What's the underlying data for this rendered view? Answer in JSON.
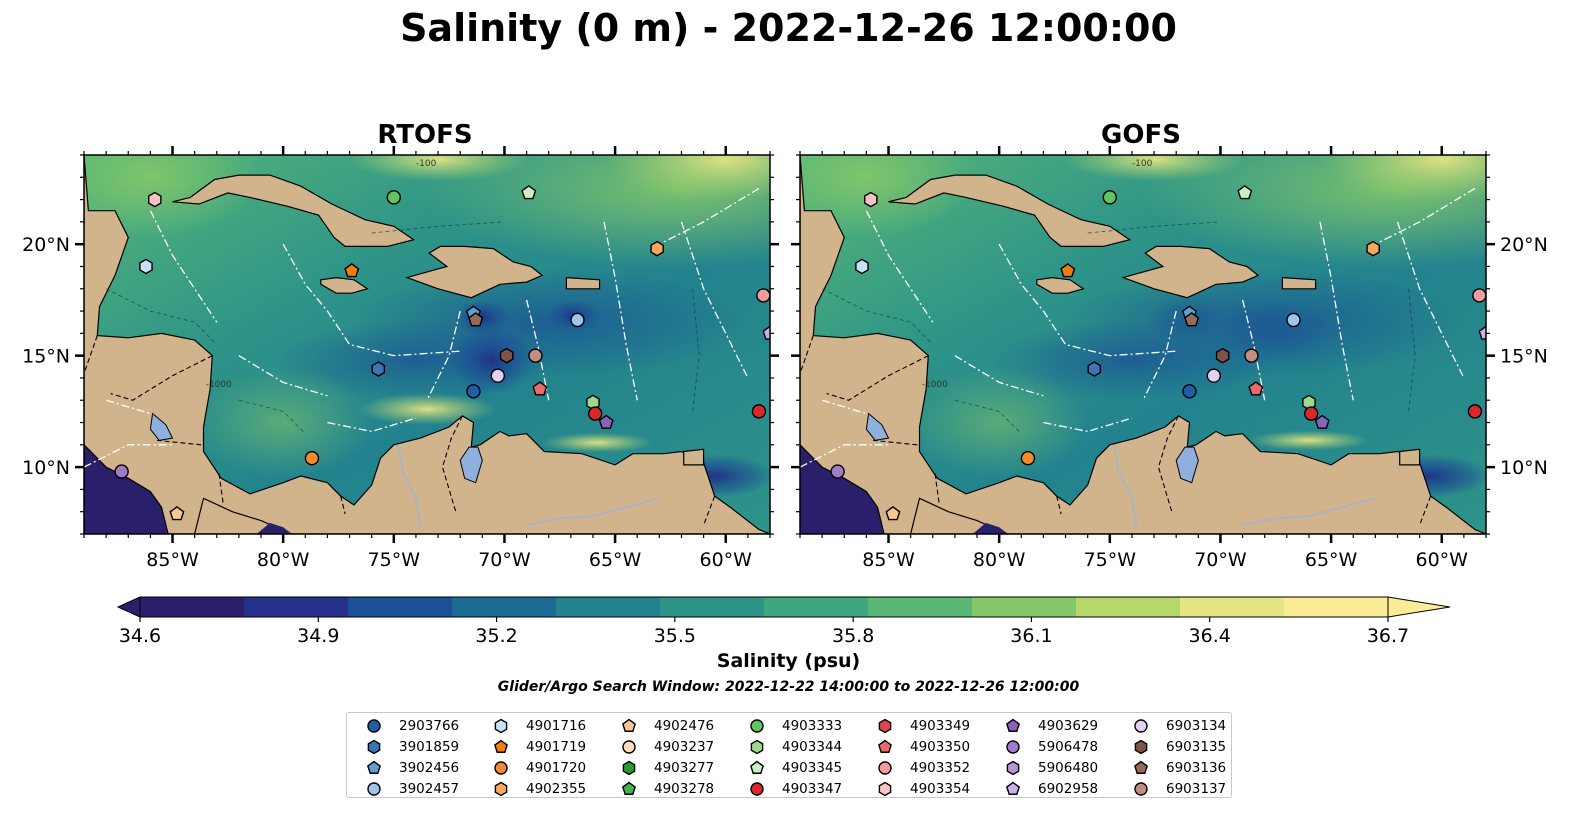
{
  "title": "Salinity (0 m) - 2022-12-26 12:00:00",
  "panels": [
    {
      "title": "RTOFS",
      "variant": "rtofs"
    },
    {
      "title": "GOFS",
      "variant": "gofs"
    }
  ],
  "axes": {
    "x_ticks": [
      "85°W",
      "80°W",
      "75°W",
      "70°W",
      "65°W",
      "60°W"
    ],
    "x_tick_values": [
      -85,
      -80,
      -75,
      -70,
      -65,
      -60
    ],
    "y_ticks": [
      "20°N",
      "15°N",
      "10°N"
    ],
    "y_tick_values": [
      20,
      15,
      10
    ],
    "extent": {
      "lon_min": -89,
      "lon_max": -58,
      "lat_min": 7,
      "lat_max": 24
    }
  },
  "colorbar": {
    "label": "Salinity (psu)",
    "ticks": [
      "34.6",
      "34.9",
      "35.2",
      "35.5",
      "35.8",
      "36.1",
      "36.4",
      "36.7"
    ],
    "min": 34.6,
    "max": 36.7,
    "colors": [
      "#2a1f6b",
      "#24328c",
      "#1c4f94",
      "#1c6b92",
      "#22828e",
      "#2e9488",
      "#3fa77f",
      "#5ab874",
      "#85c86a",
      "#b6d86b",
      "#e6e584",
      "#fdec97"
    ]
  },
  "contour_labels": [
    "-100",
    "-1000"
  ],
  "search_window": "Glider/Argo Search Window: 2022-12-22 14:00:00 to 2022-12-26 12:00:00",
  "legend": [
    {
      "id": "2903766",
      "marker": "circle",
      "color": "#1f5fa8"
    },
    {
      "id": "3901859",
      "marker": "hexagon",
      "color": "#3a75b5"
    },
    {
      "id": "3902456",
      "marker": "pentagon",
      "color": "#5f9fd6"
    },
    {
      "id": "3902457",
      "marker": "circle",
      "color": "#9cc6ea"
    },
    {
      "id": "4901716",
      "marker": "hexagon",
      "color": "#c6e2f6"
    },
    {
      "id": "4901719",
      "marker": "pentagon",
      "color": "#f07c12"
    },
    {
      "id": "4901720",
      "marker": "circle",
      "color": "#f58b2e"
    },
    {
      "id": "4902355",
      "marker": "hexagon",
      "color": "#f7a85a"
    },
    {
      "id": "4902476",
      "marker": "pentagon",
      "color": "#f9c892"
    },
    {
      "id": "4903237",
      "marker": "circle",
      "color": "#fcdcba"
    },
    {
      "id": "4903277",
      "marker": "hexagon",
      "color": "#2a9a2e"
    },
    {
      "id": "4903278",
      "marker": "pentagon",
      "color": "#48b448"
    },
    {
      "id": "4903333",
      "marker": "circle",
      "color": "#63c262"
    },
    {
      "id": "4903344",
      "marker": "hexagon",
      "color": "#9ad98e"
    },
    {
      "id": "4903345",
      "marker": "pentagon",
      "color": "#c8f0c0"
    },
    {
      "id": "4903347",
      "marker": "circle",
      "color": "#d9282b"
    },
    {
      "id": "4903349",
      "marker": "hexagon",
      "color": "#e0464a"
    },
    {
      "id": "4903350",
      "marker": "pentagon",
      "color": "#ea6a6c"
    },
    {
      "id": "4903352",
      "marker": "circle",
      "color": "#f29b9a"
    },
    {
      "id": "4903354",
      "marker": "hexagon",
      "color": "#f9c3c2"
    },
    {
      "id": "4903629",
      "marker": "pentagon",
      "color": "#8a63b8"
    },
    {
      "id": "5906478",
      "marker": "circle",
      "color": "#a07cc8"
    },
    {
      "id": "5906480",
      "marker": "hexagon",
      "color": "#b595d6"
    },
    {
      "id": "6902958",
      "marker": "pentagon",
      "color": "#cab2e6"
    },
    {
      "id": "6903134",
      "marker": "circle",
      "color": "#e4d0f2"
    },
    {
      "id": "6903135",
      "marker": "hexagon",
      "color": "#7d5448"
    },
    {
      "id": "6903136",
      "marker": "pentagon",
      "color": "#956a5c"
    },
    {
      "id": "6903137",
      "marker": "circle",
      "color": "#c28e80"
    }
  ],
  "floats": [
    {
      "id": "4903354",
      "lon": -85.8,
      "lat": 22.0
    },
    {
      "id": "4903333",
      "lon": -75.0,
      "lat": 22.1
    },
    {
      "id": "4903345",
      "lon": -68.9,
      "lat": 22.3
    },
    {
      "id": "4901716",
      "lon": -86.2,
      "lat": 19.0
    },
    {
      "id": "4901719",
      "lon": -76.9,
      "lat": 18.8
    },
    {
      "id": "4902355",
      "lon": -63.1,
      "lat": 19.8
    },
    {
      "id": "4903352",
      "lon": -58.3,
      "lat": 17.7
    },
    {
      "id": "6902958",
      "lon": -58.0,
      "lat": 16.0
    },
    {
      "id": "3902456",
      "lon": -71.4,
      "lat": 16.9
    },
    {
      "id": "6903136",
      "lon": -71.3,
      "lat": 16.6
    },
    {
      "id": "3902457",
      "lon": -66.7,
      "lat": 16.6
    },
    {
      "id": "6903135",
      "lon": -69.9,
      "lat": 15.0
    },
    {
      "id": "6903137",
      "lon": -68.6,
      "lat": 15.0
    },
    {
      "id": "3901859",
      "lon": -75.7,
      "lat": 14.4
    },
    {
      "id": "2903766",
      "lon": -71.4,
      "lat": 13.4
    },
    {
      "id": "6903134",
      "lon": -70.3,
      "lat": 14.1
    },
    {
      "id": "4903350",
      "lon": -68.4,
      "lat": 13.5
    },
    {
      "id": "4903344",
      "lon": -66.0,
      "lat": 12.9
    },
    {
      "id": "4903347",
      "lon": -65.9,
      "lat": 12.4
    },
    {
      "id": "4903629",
      "lon": -65.4,
      "lat": 12.0
    },
    {
      "id": "4903347",
      "lon": -58.5,
      "lat": 12.5
    },
    {
      "id": "4901720",
      "lon": -78.7,
      "lat": 10.4
    },
    {
      "id": "5906478",
      "lon": -87.3,
      "lat": 9.8
    },
    {
      "id": "4902476",
      "lon": -84.8,
      "lat": 7.9
    }
  ]
}
